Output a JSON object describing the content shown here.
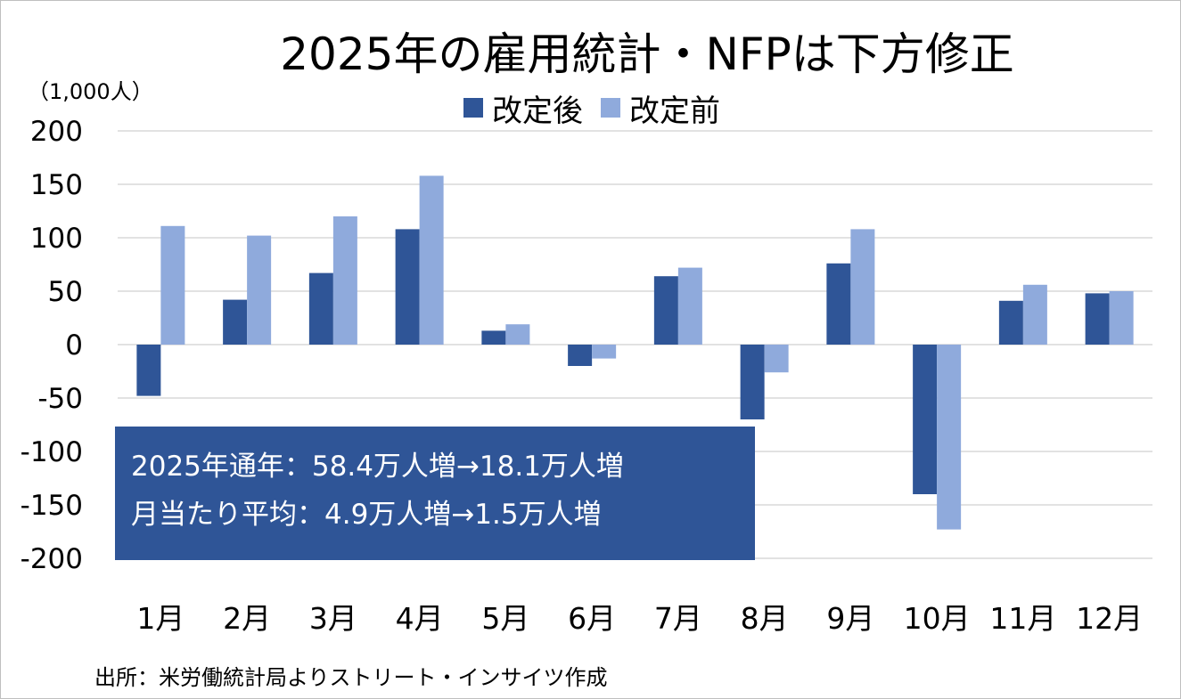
{
  "title": "2025年の雇用統計・NFPは下方修正",
  "unit": "（1,000人）",
  "source": "出所：米労働統計局よりストリート・インサイツ作成",
  "info_box": {
    "line1": "2025年通年：58.4万人増→18.1万人増",
    "line2": "月当たり平均：4.9万人増→1.5万人増"
  },
  "chart_data": {
    "type": "bar",
    "categories": [
      "1月",
      "2月",
      "3月",
      "4月",
      "5月",
      "6月",
      "7月",
      "8月",
      "9月",
      "10月",
      "11月",
      "12月"
    ],
    "series": [
      {
        "name": "改定後",
        "color": "#2f5597",
        "values": [
          -48,
          42,
          67,
          108,
          13,
          -20,
          64,
          -70,
          76,
          -140,
          41,
          48
        ]
      },
      {
        "name": "改定前",
        "color": "#8faadc",
        "values": [
          111,
          102,
          120,
          158,
          19,
          -13,
          72,
          -26,
          108,
          -173,
          56,
          50
        ]
      }
    ],
    "ylim": [
      -200,
      200
    ],
    "yticks": [
      200,
      150,
      100,
      50,
      0,
      -50,
      -100,
      -150,
      -200
    ],
    "grid": true,
    "legend_position": "top"
  }
}
